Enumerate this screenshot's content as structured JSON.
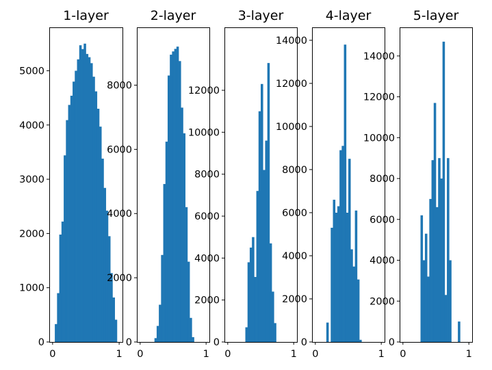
{
  "chart_data": [
    {
      "type": "bar",
      "title": "1-layer",
      "xlim": [
        -0.05,
        1.05
      ],
      "ylim": [
        0,
        5800
      ],
      "xticks": [
        0,
        1
      ],
      "yticks": [
        0,
        1000,
        2000,
        3000,
        4000,
        5000
      ],
      "bin_edges": [
        0,
        0.0333,
        0.0667,
        0.1,
        0.1333,
        0.1667,
        0.2,
        0.2333,
        0.2667,
        0.3,
        0.3333,
        0.3667,
        0.4,
        0.4333,
        0.4667,
        0.5,
        0.5333,
        0.5667,
        0.6,
        0.6333,
        0.6667,
        0.7,
        0.7333,
        0.7667,
        0.8,
        0.8333,
        0.8667,
        0.9,
        0.9333,
        0.9667,
        1.0
      ],
      "counts": [
        0,
        330,
        900,
        1980,
        2220,
        3440,
        4090,
        4370,
        4540,
        4800,
        5000,
        5210,
        5470,
        5400,
        5500,
        5310,
        5250,
        5140,
        4890,
        4620,
        4300,
        3970,
        3380,
        2840,
        2420,
        1950,
        1270,
        820,
        410,
        0
      ]
    },
    {
      "type": "bar",
      "title": "2-layer",
      "xlim": [
        -0.05,
        1.05
      ],
      "ylim": [
        0,
        9800
      ],
      "xticks": [
        0,
        1
      ],
      "yticks": [
        0,
        2000,
        4000,
        6000,
        8000
      ],
      "bin_edges": [
        0.15,
        0.1833,
        0.2167,
        0.25,
        0.2833,
        0.3167,
        0.35,
        0.3833,
        0.4167,
        0.45,
        0.4833,
        0.5167,
        0.55,
        0.5833,
        0.6167,
        0.65,
        0.6833,
        0.7167,
        0.75,
        0.7833,
        0.8167
      ],
      "counts": [
        0,
        0,
        120,
        500,
        1160,
        2710,
        4920,
        6240,
        8300,
        8950,
        9050,
        9130,
        9200,
        8750,
        7300,
        6500,
        4200,
        2500,
        750,
        150
      ]
    },
    {
      "type": "bar",
      "title": "3-layer",
      "xlim": [
        -0.05,
        1.05
      ],
      "ylim": [
        0,
        15000
      ],
      "xticks": [
        0,
        1
      ],
      "yticks": [
        0,
        2000,
        4000,
        6000,
        8000,
        10000,
        12000
      ],
      "bin_edges": [
        0.2667,
        0.3,
        0.3333,
        0.3667,
        0.4,
        0.4333,
        0.4667,
        0.5,
        0.5333,
        0.5667,
        0.6,
        0.6333,
        0.6667,
        0.7,
        0.7333,
        0.7667,
        0.8
      ],
      "counts": [
        700,
        3800,
        4500,
        5000,
        3100,
        7200,
        11000,
        12300,
        8200,
        9600,
        13300,
        4700,
        2400,
        900,
        0,
        0
      ]
    },
    {
      "type": "bar",
      "title": "4-layer",
      "xlim": [
        -0.05,
        1.05
      ],
      "ylim": [
        0,
        14600
      ],
      "xticks": [
        0,
        1
      ],
      "yticks": [
        0,
        2000,
        4000,
        6000,
        8000,
        10000,
        12000,
        14000
      ],
      "bin_edges": [
        0.1667,
        0.2,
        0.2333,
        0.2667,
        0.3,
        0.3333,
        0.3667,
        0.4,
        0.4333,
        0.4667,
        0.5,
        0.5333,
        0.5667,
        0.6,
        0.6333,
        0.6667,
        0.7,
        0.7333,
        0.7667
      ],
      "counts": [
        900,
        0,
        5300,
        6600,
        6000,
        6300,
        8900,
        9100,
        13800,
        6000,
        8500,
        4300,
        3500,
        6100,
        2900,
        100,
        0,
        0
      ]
    },
    {
      "type": "bar",
      "title": "5-layer",
      "xlim": [
        -0.05,
        1.05
      ],
      "ylim": [
        0,
        15400
      ],
      "xticks": [
        0,
        1
      ],
      "yticks": [
        0,
        2000,
        4000,
        6000,
        8000,
        10000,
        12000,
        14000
      ],
      "bin_edges": [
        0.2667,
        0.3,
        0.3333,
        0.3667,
        0.4,
        0.4333,
        0.4667,
        0.5,
        0.5333,
        0.5667,
        0.6,
        0.6333,
        0.6667,
        0.7,
        0.7333,
        0.7667,
        0.8,
        0.8333,
        0.8667
      ],
      "counts": [
        6200,
        4000,
        5300,
        3200,
        7000,
        8900,
        11700,
        6600,
        9000,
        8000,
        14700,
        2300,
        9000,
        4000,
        0,
        0,
        0,
        1000
      ]
    }
  ],
  "colors": {
    "bar": "#1f77b4",
    "axes": "#000000",
    "background": "#ffffff"
  }
}
